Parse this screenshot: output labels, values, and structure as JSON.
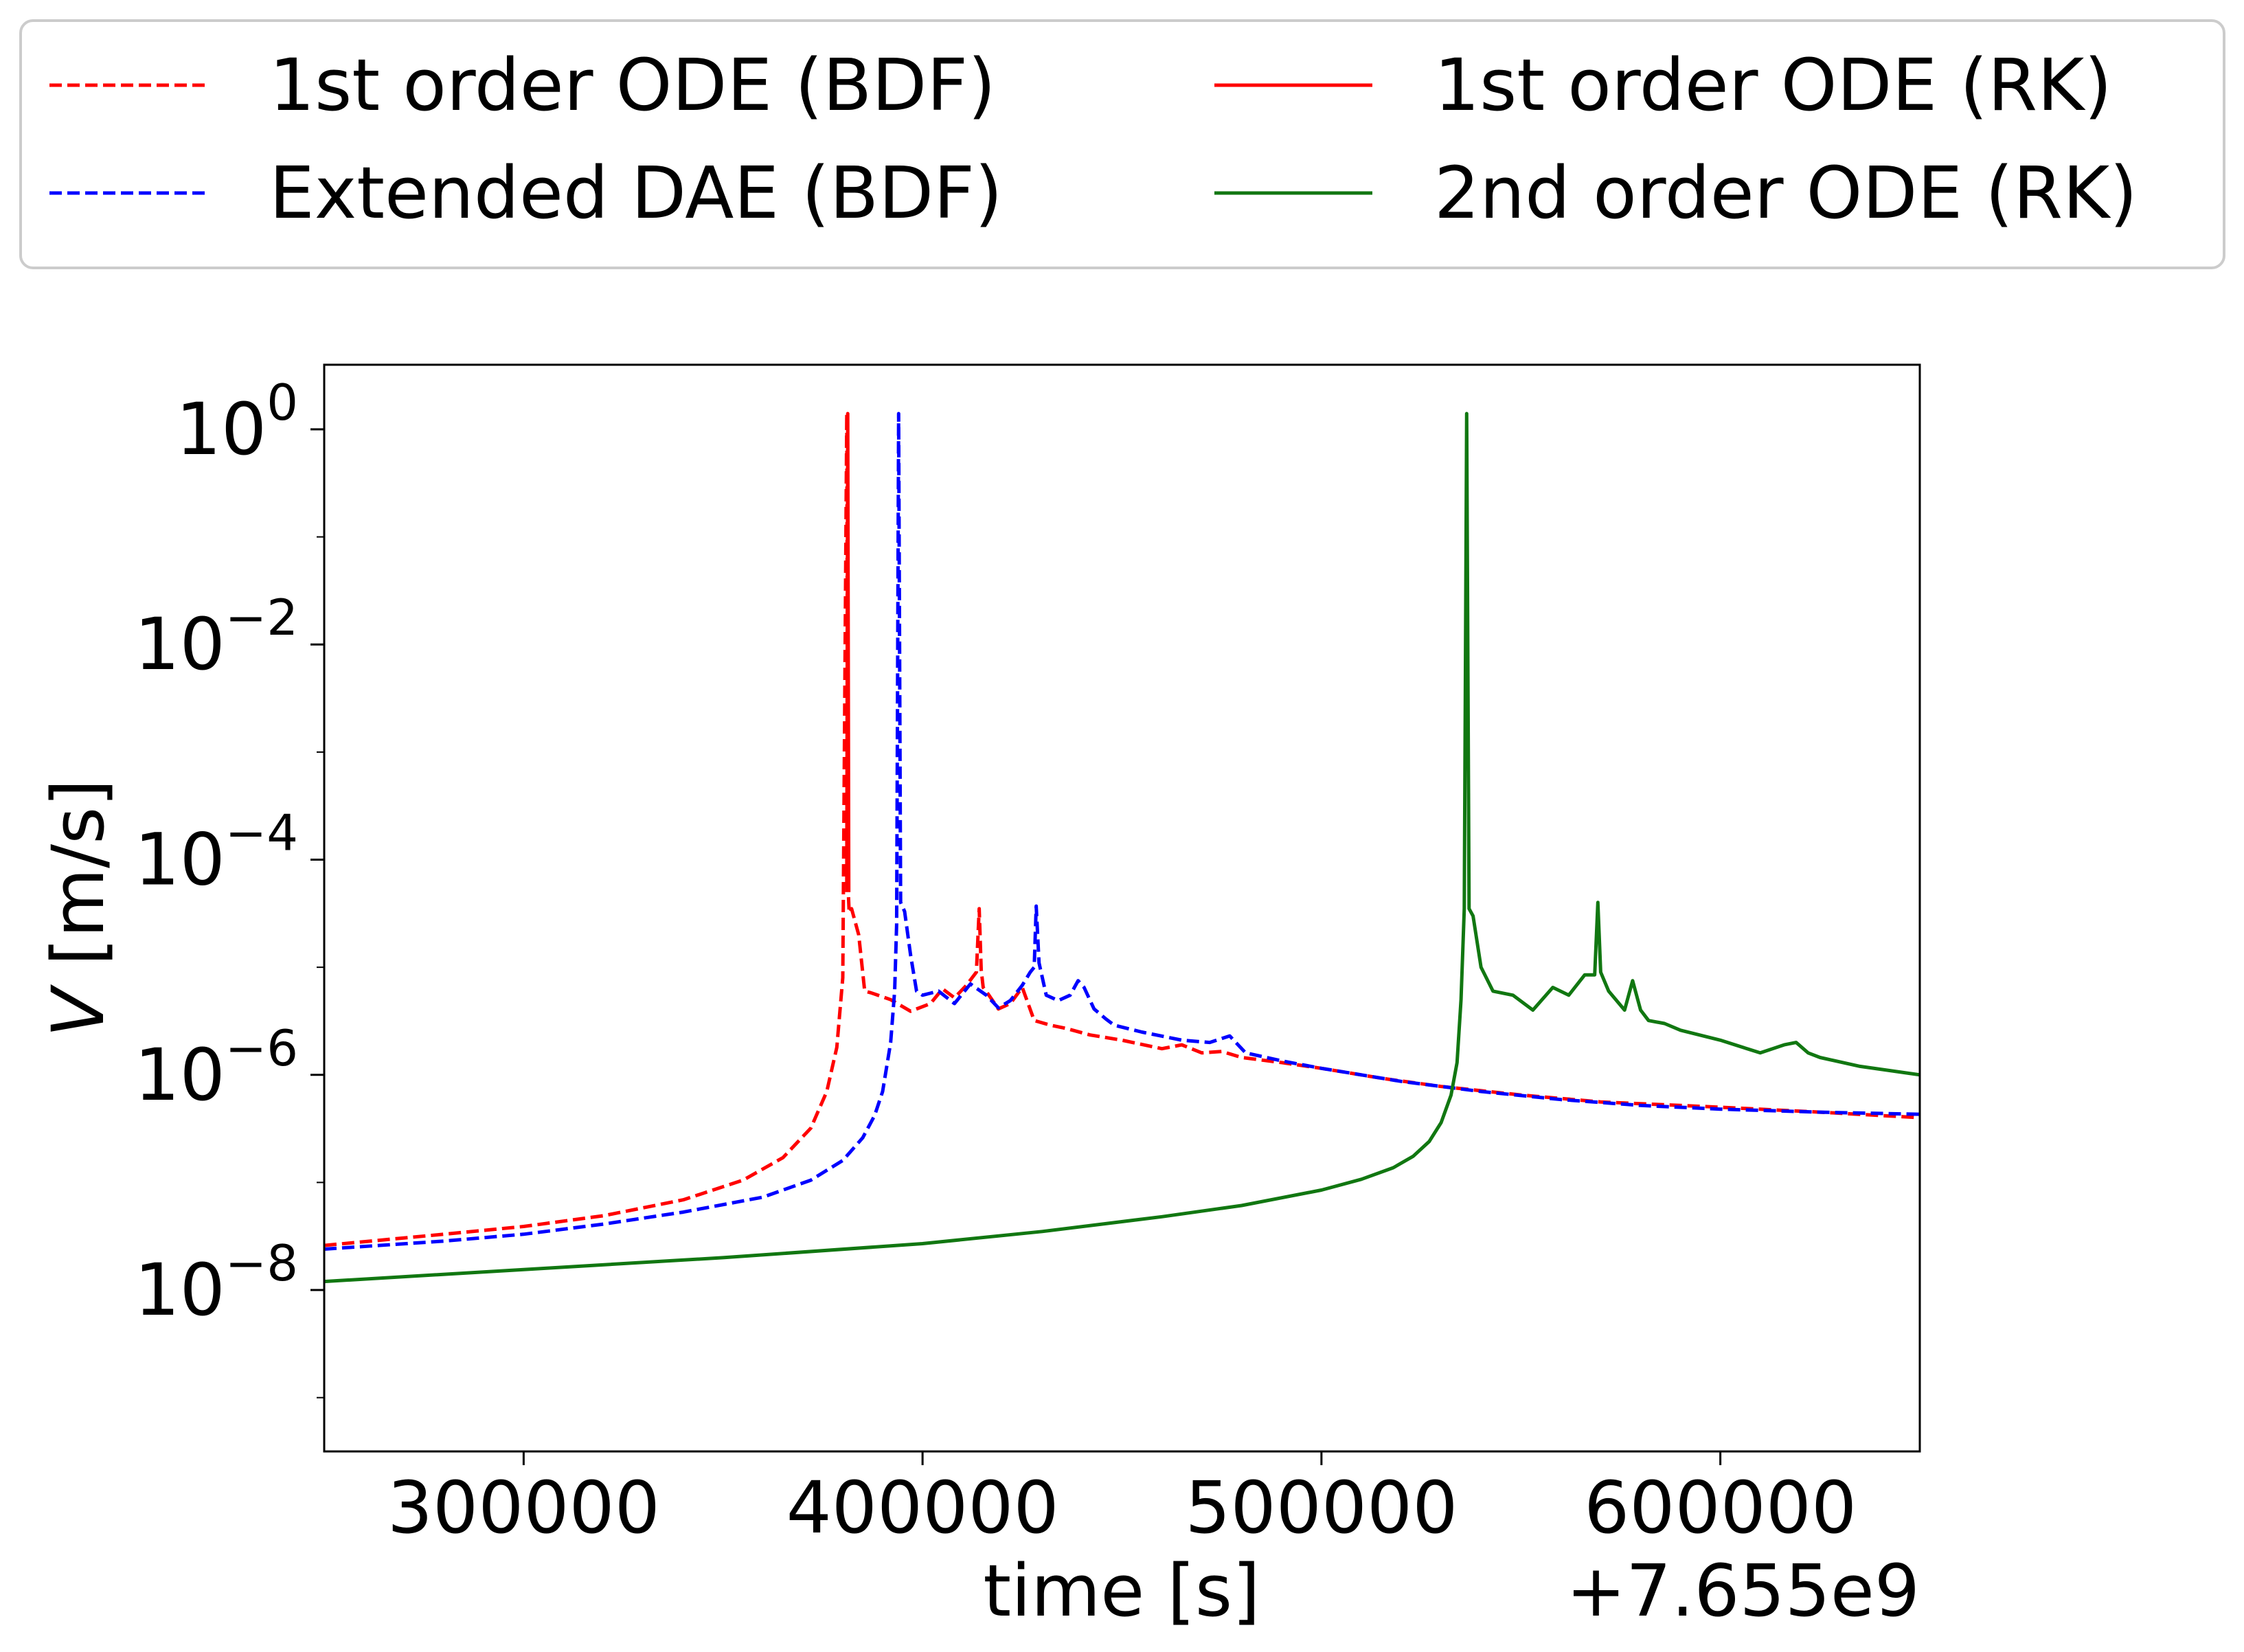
{
  "chart_data": {
    "type": "line",
    "title": "",
    "xlabel": "time [s]",
    "ylabel": "V [m/s]",
    "x_offset_label": "+7.655e9",
    "x_units": "seconds minus 7.655e9 offset",
    "xlim": [
      250000,
      650000
    ],
    "ylim_log10": [
      -9.5,
      0.6
    ],
    "yscale": "log",
    "grid": false,
    "legend_position": "top, above plot, 2 columns",
    "x_ticks": [
      {
        "value": 300000,
        "label": "300000"
      },
      {
        "value": 400000,
        "label": "400000"
      },
      {
        "value": 500000,
        "label": "500000"
      },
      {
        "value": 600000,
        "label": "600000"
      }
    ],
    "y_ticks": [
      {
        "exp": 0,
        "base": "10",
        "sup": "0"
      },
      {
        "exp": -2,
        "base": "10",
        "sup": "−2"
      },
      {
        "exp": -4,
        "base": "10",
        "sup": "−4"
      },
      {
        "exp": -6,
        "base": "10",
        "sup": "−6"
      },
      {
        "exp": -8,
        "base": "10",
        "sup": "−8"
      }
    ],
    "series": [
      {
        "name": "1st order ODE (BDF)",
        "color": "#ff0000",
        "dash": true,
        "x": [
          250000,
          280000,
          300000,
          320000,
          340000,
          355000,
          365000,
          372000,
          376000,
          378500,
          380000,
          381000,
          381300,
          381600,
          382200,
          384000,
          385500,
          387000,
          392000,
          397000,
          402000,
          405000,
          408000,
          411000,
          413500,
          414200,
          414700,
          415200,
          416500,
          419000,
          422000,
          425000,
          428000,
          432000,
          436000,
          442000,
          450000,
          460000,
          465000,
          470000,
          475000,
          480000,
          490000,
          500000,
          515000,
          530000,
          550000,
          570000,
          600000,
          625000,
          650000
        ],
        "y": [
          2.6e-08,
          3.3e-08,
          3.9e-08,
          4.9e-08,
          6.9e-08,
          1.05e-07,
          1.7e-07,
          3.2e-07,
          7e-07,
          1.8e-06,
          8e-06,
          1.4,
          6e-05,
          3.2e-05,
          3.5e-05,
          2e-05,
          6e-06,
          5.8e-06,
          5e-06,
          3.9e-06,
          4.6e-06,
          6.3e-06,
          5.2e-06,
          6.8e-06,
          9e-06,
          3.5e-05,
          9.5e-06,
          6.5e-06,
          5.6e-06,
          4.1e-06,
          4.6e-06,
          6.5e-06,
          3.2e-06,
          2.9e-06,
          2.7e-06,
          2.35e-06,
          2.1e-06,
          1.75e-06,
          1.9e-06,
          1.6e-06,
          1.65e-06,
          1.45e-06,
          1.3e-06,
          1.15e-06,
          9.3e-07,
          7.8e-07,
          6.5e-07,
          5.6e-07,
          5e-07,
          4.5e-07,
          4e-07
        ]
      },
      {
        "name": "Extended DAE (BDF)",
        "color": "#0000ff",
        "dash": true,
        "x": [
          250000,
          280000,
          300000,
          320000,
          340000,
          360000,
          372000,
          380000,
          385000,
          388000,
          390000,
          392000,
          393000,
          393500,
          394000,
          394500,
          395500,
          397000,
          398500,
          400000,
          404000,
          408000,
          412000,
          416000,
          419000,
          422000,
          425000,
          427000,
          428000,
          428500,
          429200,
          431000,
          434000,
          437000,
          439000,
          440500,
          443000,
          446000,
          448000,
          455000,
          465000,
          472000,
          477000,
          481000,
          490000,
          500000,
          520000,
          540000,
          560000,
          580000,
          600000,
          625000,
          650000
        ],
        "y": [
          2.4e-08,
          2.85e-08,
          3.3e-08,
          4.1e-08,
          5.3e-08,
          7.3e-08,
          1.05e-07,
          1.6e-07,
          2.6e-07,
          4.2e-07,
          7e-07,
          2e-06,
          6e-06,
          2.5e-05,
          1.4,
          4e-05,
          3.3e-05,
          1.3e-05,
          6e-06,
          5.5e-06,
          6e-06,
          4.6e-06,
          7e-06,
          5.5e-06,
          4.2e-06,
          4.9e-06,
          6.8e-06,
          9e-06,
          1e-05,
          3.7e-05,
          1.1e-05,
          5.5e-06,
          4.9e-06,
          5.5e-06,
          7.5e-06,
          6.5e-06,
          4.1e-06,
          3.3e-06,
          2.9e-06,
          2.5e-06,
          2.1e-06,
          2e-06,
          2.3e-06,
          1.6e-06,
          1.35e-06,
          1.15e-06,
          8.7e-07,
          7e-07,
          5.9e-07,
          5.2e-07,
          4.8e-07,
          4.5e-07,
          4.3e-07
        ]
      },
      {
        "name": "1st order ODE (RK)",
        "color": "#ff0000",
        "dash": false,
        "x": [
          381000,
          381250,
          381500
        ],
        "y": [
          5e-05,
          1.4,
          5e-05
        ]
      },
      {
        "name": "2nd order ODE (RK)",
        "color": "#117711",
        "dash": false,
        "x": [
          250000,
          300000,
          350000,
          400000,
          430000,
          460000,
          480000,
          500000,
          510000,
          518000,
          523000,
          527000,
          530000,
          532500,
          534000,
          535000,
          535800,
          536400,
          537000,
          538000,
          540000,
          543000,
          548000,
          553000,
          558000,
          562000,
          566000,
          568500,
          569300,
          570000,
          572000,
          576000,
          578000,
          580000,
          582000,
          586000,
          590000,
          600000,
          610000,
          616000,
          619000,
          622000,
          625000,
          635000,
          650000
        ],
        "y": [
          1.2e-08,
          1.55e-08,
          2e-08,
          2.7e-08,
          3.5e-08,
          4.8e-08,
          6.1e-08,
          8.5e-08,
          1.07e-07,
          1.37e-07,
          1.75e-07,
          2.4e-07,
          3.6e-07,
          6.5e-07,
          1.3e-06,
          5e-06,
          3.5e-05,
          1.4,
          3.5e-05,
          3e-05,
          1e-05,
          6e-06,
          5.5e-06,
          4e-06,
          6.5e-06,
          5.5e-06,
          8.5e-06,
          8.5e-06,
          4e-05,
          9e-06,
          6e-06,
          4e-06,
          7.5e-06,
          4e-06,
          3.2e-06,
          3e-06,
          2.6e-06,
          2.1e-06,
          1.6e-06,
          1.9e-06,
          2e-06,
          1.6e-06,
          1.45e-06,
          1.2e-06,
          1e-06
        ]
      }
    ],
    "legend": [
      {
        "label": "1st order ODE (BDF)",
        "color": "#ff0000",
        "dash": true
      },
      {
        "label": "1st order ODE (RK)",
        "color": "#ff0000",
        "dash": false
      },
      {
        "label": "Extended DAE (BDF)",
        "color": "#0000ff",
        "dash": true
      },
      {
        "label": "2nd order ODE (RK)",
        "color": "#117711",
        "dash": false
      }
    ]
  }
}
